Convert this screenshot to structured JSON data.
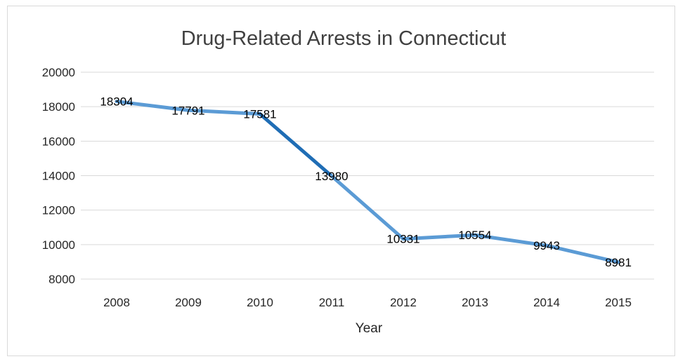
{
  "chart_data": {
    "type": "line",
    "title": "Drug-Related Arrests in Connecticut",
    "xlabel": "Year",
    "ylabel": "",
    "categories": [
      "2008",
      "2009",
      "2010",
      "2011",
      "2012",
      "2013",
      "2014",
      "2015"
    ],
    "values": [
      18304,
      17791,
      17581,
      13980,
      10331,
      10554,
      9943,
      8981
    ],
    "data_labels": [
      "18304",
      "17791",
      "17581",
      "13980",
      "10331",
      "10554",
      "9943",
      "8981"
    ],
    "yticks": [
      "8000",
      "10000",
      "12000",
      "14000",
      "16000",
      "18000",
      "20000"
    ],
    "ylim": [
      8000,
      20000
    ],
    "grid": true,
    "legend": "none",
    "line_color": "#5b9bd5",
    "highlight_color": "#1f6db5",
    "highlight_segment": [
      "2010",
      "2011"
    ]
  }
}
